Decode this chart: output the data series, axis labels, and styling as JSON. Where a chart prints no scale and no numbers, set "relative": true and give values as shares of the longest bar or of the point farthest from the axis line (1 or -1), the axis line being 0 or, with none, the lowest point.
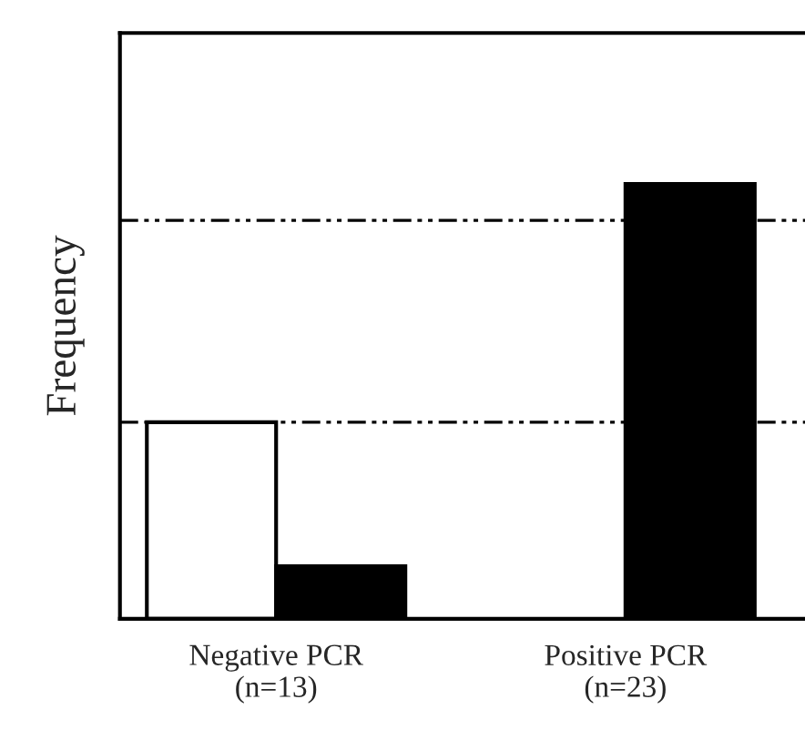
{
  "chart_data": {
    "type": "bar",
    "relative": true,
    "ylabel": "Frequency",
    "categories": [
      "Negative PCR\n(n=13)",
      "Positive PCR\n(n=23)"
    ],
    "series": [
      {
        "color": "#ffffff",
        "values": [
          0.452,
          null
        ]
      },
      {
        "color": "#000000",
        "values": [
          0.121,
          1
        ]
      }
    ],
    "ref_lines": [
      {
        "axis": "y",
        "value": 0.916,
        "line_style": "dashdot",
        "color": "#000000"
      },
      {
        "axis": "y",
        "value": 0.452,
        "line_style": "dashdot",
        "color": "#000000"
      }
    ],
    "grid": false,
    "legend": false
  }
}
